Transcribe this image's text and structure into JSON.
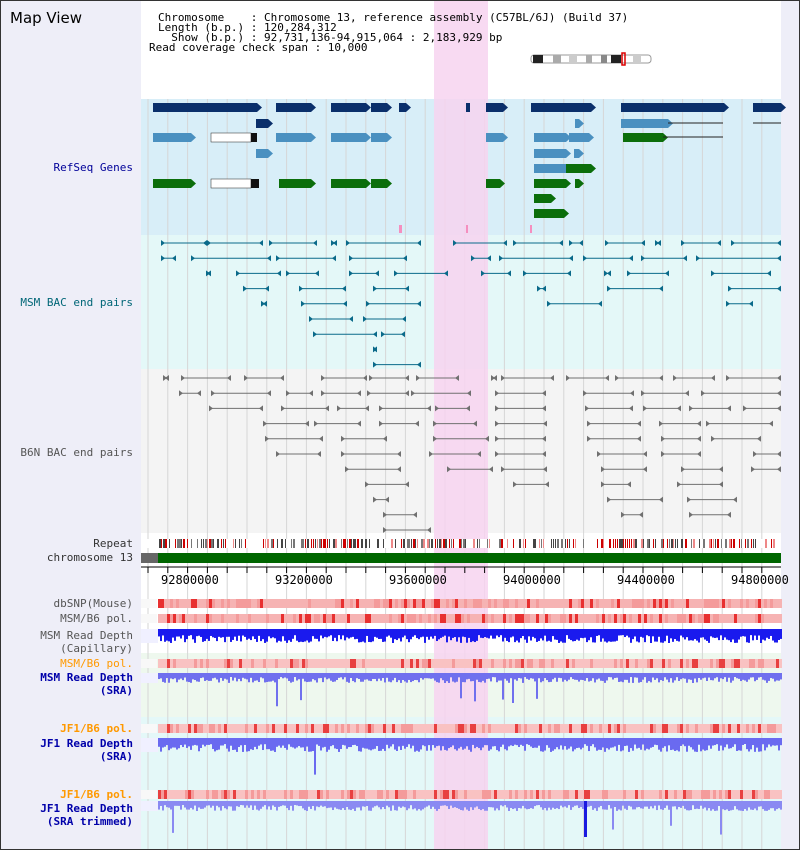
{
  "page_title": "Map View",
  "header": {
    "chromosome_line": "Chromosome    : Chromosome 13, reference assembly (C57BL/6J) (Build 37)",
    "length_line": "Length (b.p.) : 120,284,312",
    "show_line": "  Show (b.p.) : 92,731,136-94,915,064 : 2,183,929 bp",
    "coverage_line": "Read coverage check span : 10,000"
  },
  "tracks": {
    "refseq": "RefSeq Genes",
    "msm_bac": "MSM BAC end pairs",
    "b6n_bac": "B6N BAC end pairs",
    "repeat": "Repeat",
    "chromosome": "chromosome 13",
    "dbsnp": "dbSNP(Mouse)",
    "msm_b6_pol_1": "MSM/B6 pol.",
    "msm_depth_cap_1": "MSM Read Depth",
    "msm_depth_cap_2": "(Capillary)",
    "msm_b6_pol_2": "MSM/B6 pol.",
    "msm_depth_sra_1": "MSM Read Depth",
    "msm_depth_sra_2": "(SRA)",
    "jf1_pol_1": "JF1/B6 pol.",
    "jf1_depth_sra_1": "JF1 Read Depth",
    "jf1_depth_sra_2": "(SRA)",
    "jf1_pol_2": "JF1/B6 pol.",
    "jf1_depth_trim_1": "JF1 Read Depth",
    "jf1_depth_trim_2": "(SRA trimmed)"
  },
  "scale_ticks": [
    "92800000",
    "93200000",
    "93600000",
    "94000000",
    "94400000",
    "94800000"
  ],
  "colors": {
    "refseq_dark": "#0a2f6b",
    "refseq_mid": "#4a90c0",
    "refseq_green": "#0b6e0b",
    "msm_bac": "#0a6a8a",
    "b6n_bac": "#707070",
    "highlight": "#f7d4f0",
    "chromosome_bar": "#006600",
    "repeat_red": "#cc0000",
    "depth_blue": "#1a1aee",
    "depth_light": "#7070f0",
    "pol_red": "#ee4040",
    "label_blue": "#000099",
    "label_orange": "#ff9900",
    "label_teal": "#006677"
  }
}
